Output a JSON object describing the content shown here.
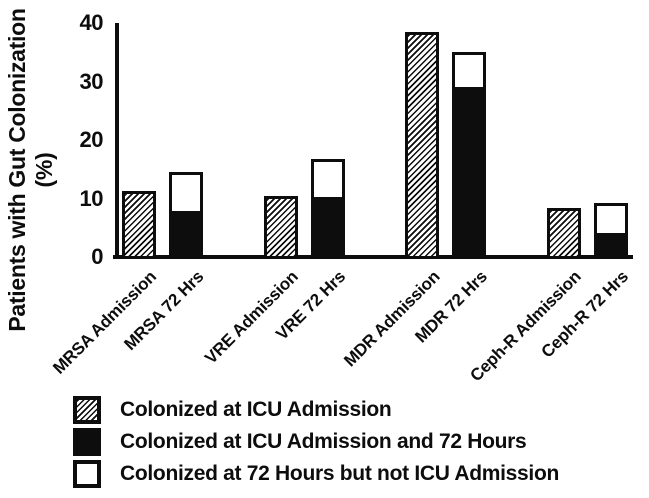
{
  "chart_data": {
    "type": "bar",
    "title": "",
    "ylabel": "Patients with Gut Colonization (%)",
    "ylabel_lines": [
      "Patients with Gut Colonization",
      "(%)"
    ],
    "ylim": [
      0,
      40
    ],
    "yticks": [
      0,
      10,
      20,
      30,
      40
    ],
    "grid": false,
    "legend_position": "bottom-left",
    "categories": [
      "MRSA Admission",
      "MRSA 72 Hrs",
      "VRE Admission",
      "VRE 72 Hrs",
      "MDR Admission",
      "MDR 72 Hrs",
      "Ceph-R Admission",
      "Ceph-R 72 Hrs"
    ],
    "series": [
      {
        "name": "Colonized at ICU Admission",
        "pattern": "hatched",
        "values": [
          11.3,
          null,
          10.4,
          null,
          38.5,
          null,
          8.3,
          null
        ]
      },
      {
        "name": "Colonized at ICU Admission and 72 Hours",
        "pattern": "solid-black",
        "values": [
          null,
          7.7,
          null,
          10.1,
          null,
          28.9,
          null,
          3.9
        ]
      },
      {
        "name": "Colonized at 72 Hours but not ICU Admission",
        "pattern": "white-outlined",
        "values": [
          null,
          6.8,
          null,
          6.6,
          null,
          6.1,
          null,
          5.3
        ]
      }
    ],
    "stacked_bar_totals": {
      "MRSA 72 Hrs": 14.5,
      "VRE 72 Hrs": 16.7,
      "MDR 72 Hrs": 35.0,
      "Ceph-R 72 Hrs": 9.2
    },
    "legend": [
      {
        "label": "Colonized at ICU Admission",
        "swatch": "hatched"
      },
      {
        "label": "Colonized at ICU Admission and 72 Hours",
        "swatch": "solid-black"
      },
      {
        "label": "Colonized at 72 Hours but not ICU Admission",
        "swatch": "white-outlined"
      }
    ],
    "colors": {
      "ink": "#0d0d0d",
      "background": "#ffffff"
    }
  }
}
